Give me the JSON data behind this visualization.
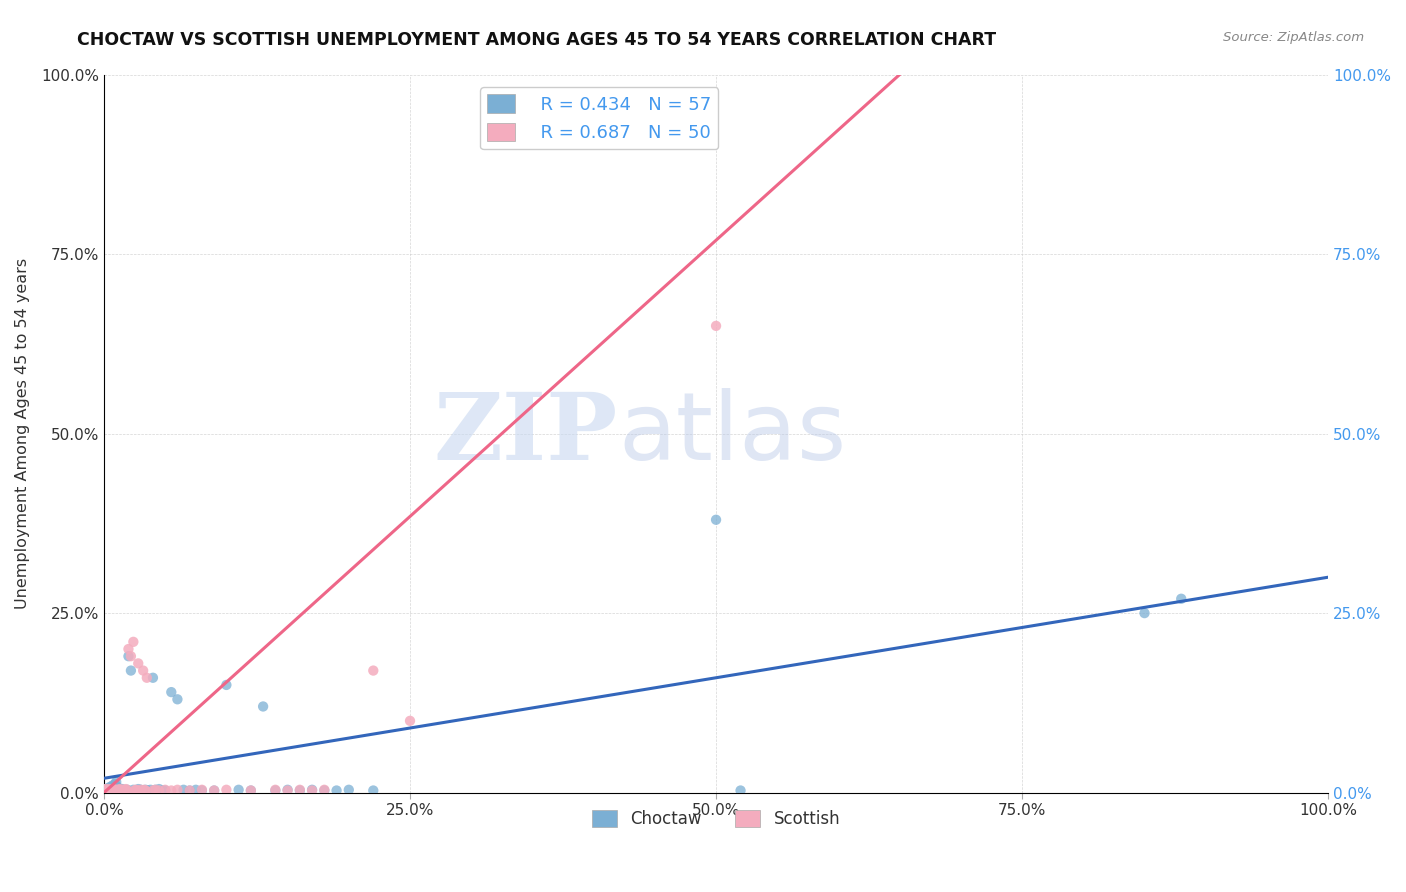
{
  "title": "CHOCTAW VS SCOTTISH UNEMPLOYMENT AMONG AGES 45 TO 54 YEARS CORRELATION CHART",
  "source": "Source: ZipAtlas.com",
  "ylabel": "Unemployment Among Ages 45 to 54 years",
  "choctaw_color": "#7BAFD4",
  "scottish_color": "#F4ACBE",
  "choctaw_line_color": "#3366BB",
  "scottish_line_color": "#EE6688",
  "left_tick_color": "#333333",
  "right_tick_color": "#4499EE",
  "choctaw_R": 0.434,
  "choctaw_N": 57,
  "scottish_R": 0.687,
  "scottish_N": 50,
  "xlim": [
    0,
    1.0
  ],
  "ylim": [
    0,
    1.0
  ],
  "xticks": [
    0.0,
    0.25,
    0.5,
    0.75,
    1.0
  ],
  "yticks": [
    0.0,
    0.25,
    0.5,
    0.75,
    1.0
  ],
  "xtick_labels": [
    "0.0%",
    "25.0%",
    "50.0%",
    "75.0%",
    "100.0%"
  ],
  "ytick_labels": [
    "0.0%",
    "25.0%",
    "50.0%",
    "75.0%",
    "100.0%"
  ],
  "watermark_zip": "ZIP",
  "watermark_atlas": "atlas",
  "choctaw_line_x": [
    0.0,
    1.0
  ],
  "choctaw_line_y": [
    0.02,
    0.3
  ],
  "scottish_line_x": [
    0.0,
    0.65
  ],
  "scottish_line_y": [
    0.0,
    1.0
  ],
  "choctaw_points": [
    [
      0.001,
      0.005
    ],
    [
      0.002,
      0.004
    ],
    [
      0.003,
      0.006
    ],
    [
      0.004,
      0.003
    ],
    [
      0.005,
      0.008
    ],
    [
      0.006,
      0.007
    ],
    [
      0.007,
      0.01
    ],
    [
      0.008,
      0.005
    ],
    [
      0.009,
      0.012
    ],
    [
      0.01,
      0.015
    ],
    [
      0.011,
      0.008
    ],
    [
      0.012,
      0.006
    ],
    [
      0.013,
      0.003
    ],
    [
      0.014,
      0.004
    ],
    [
      0.015,
      0.005
    ],
    [
      0.016,
      0.003
    ],
    [
      0.017,
      0.002
    ],
    [
      0.018,
      0.003
    ],
    [
      0.019,
      0.004
    ],
    [
      0.02,
      0.19
    ],
    [
      0.022,
      0.17
    ],
    [
      0.024,
      0.004
    ],
    [
      0.026,
      0.003
    ],
    [
      0.028,
      0.005
    ],
    [
      0.03,
      0.004
    ],
    [
      0.032,
      0.003
    ],
    [
      0.034,
      0.004
    ],
    [
      0.036,
      0.003
    ],
    [
      0.038,
      0.004
    ],
    [
      0.04,
      0.16
    ],
    [
      0.042,
      0.004
    ],
    [
      0.045,
      0.005
    ],
    [
      0.048,
      0.003
    ],
    [
      0.05,
      0.003
    ],
    [
      0.055,
      0.14
    ],
    [
      0.06,
      0.13
    ],
    [
      0.065,
      0.004
    ],
    [
      0.07,
      0.003
    ],
    [
      0.075,
      0.004
    ],
    [
      0.08,
      0.003
    ],
    [
      0.09,
      0.003
    ],
    [
      0.1,
      0.15
    ],
    [
      0.11,
      0.004
    ],
    [
      0.12,
      0.003
    ],
    [
      0.13,
      0.12
    ],
    [
      0.14,
      0.003
    ],
    [
      0.15,
      0.004
    ],
    [
      0.16,
      0.003
    ],
    [
      0.17,
      0.004
    ],
    [
      0.18,
      0.003
    ],
    [
      0.19,
      0.003
    ],
    [
      0.2,
      0.004
    ],
    [
      0.22,
      0.003
    ],
    [
      0.5,
      0.38
    ],
    [
      0.52,
      0.003
    ],
    [
      0.85,
      0.25
    ],
    [
      0.88,
      0.27
    ]
  ],
  "scottish_points": [
    [
      0.001,
      0.005
    ],
    [
      0.002,
      0.004
    ],
    [
      0.003,
      0.003
    ],
    [
      0.004,
      0.005
    ],
    [
      0.005,
      0.004
    ],
    [
      0.006,
      0.003
    ],
    [
      0.007,
      0.004
    ],
    [
      0.008,
      0.005
    ],
    [
      0.009,
      0.003
    ],
    [
      0.01,
      0.004
    ],
    [
      0.011,
      0.003
    ],
    [
      0.012,
      0.004
    ],
    [
      0.013,
      0.005
    ],
    [
      0.014,
      0.003
    ],
    [
      0.015,
      0.004
    ],
    [
      0.016,
      0.003
    ],
    [
      0.017,
      0.004
    ],
    [
      0.018,
      0.005
    ],
    [
      0.019,
      0.003
    ],
    [
      0.02,
      0.2
    ],
    [
      0.022,
      0.19
    ],
    [
      0.024,
      0.21
    ],
    [
      0.025,
      0.003
    ],
    [
      0.026,
      0.004
    ],
    [
      0.027,
      0.003
    ],
    [
      0.028,
      0.18
    ],
    [
      0.03,
      0.004
    ],
    [
      0.032,
      0.17
    ],
    [
      0.033,
      0.004
    ],
    [
      0.034,
      0.003
    ],
    [
      0.035,
      0.16
    ],
    [
      0.04,
      0.003
    ],
    [
      0.042,
      0.004
    ],
    [
      0.045,
      0.003
    ],
    [
      0.05,
      0.004
    ],
    [
      0.055,
      0.003
    ],
    [
      0.06,
      0.004
    ],
    [
      0.07,
      0.003
    ],
    [
      0.08,
      0.004
    ],
    [
      0.09,
      0.003
    ],
    [
      0.1,
      0.004
    ],
    [
      0.14,
      0.004
    ],
    [
      0.15,
      0.003
    ],
    [
      0.16,
      0.004
    ],
    [
      0.17,
      0.003
    ],
    [
      0.18,
      0.004
    ],
    [
      0.22,
      0.17
    ],
    [
      0.25,
      0.1
    ],
    [
      0.5,
      0.65
    ],
    [
      0.12,
      0.003
    ]
  ]
}
